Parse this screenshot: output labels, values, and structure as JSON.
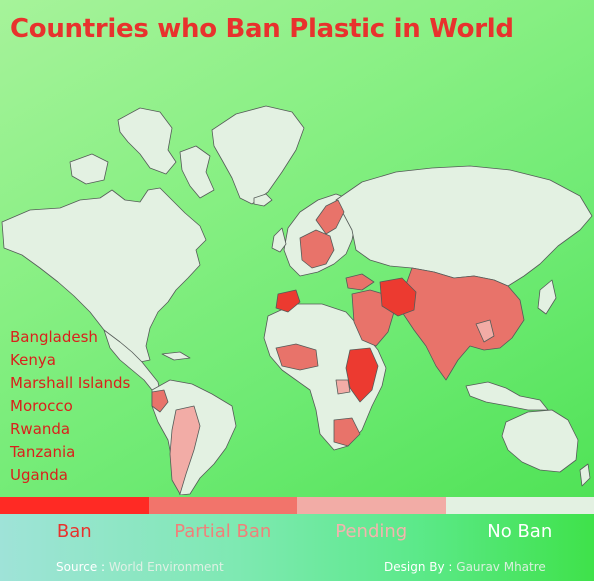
{
  "title": "Countries who Ban Plastic in World",
  "ban_list": [
    "Bangladesh",
    "Kenya",
    "Marshall Islands",
    "Morocco",
    "Rwanda",
    "Tanzania",
    "Uganda"
  ],
  "legend": [
    {
      "label": "Ban",
      "color": "#ff2a24",
      "text_color": "#e8322d"
    },
    {
      "label": "Partial Ban",
      "color": "#f2746b",
      "text_color": "#f0807a"
    },
    {
      "label": "Pending",
      "color": "#f2aca6",
      "text_color": "#f5b4ae"
    },
    {
      "label": "No Ban",
      "color": "#e3f1e2",
      "text_color": "#ffffff"
    }
  ],
  "footer": {
    "source_label": "Source :",
    "source_value": "World Environment",
    "design_label": "Design By :",
    "design_value": "Gaurav Mhatre"
  },
  "colors": {
    "no_ban_fill": "#e3f1e2",
    "partial_fill": "#e8736a",
    "ban_fill": "#ec3a30",
    "pending_fill": "#f2aca6",
    "border": "#555b58"
  }
}
